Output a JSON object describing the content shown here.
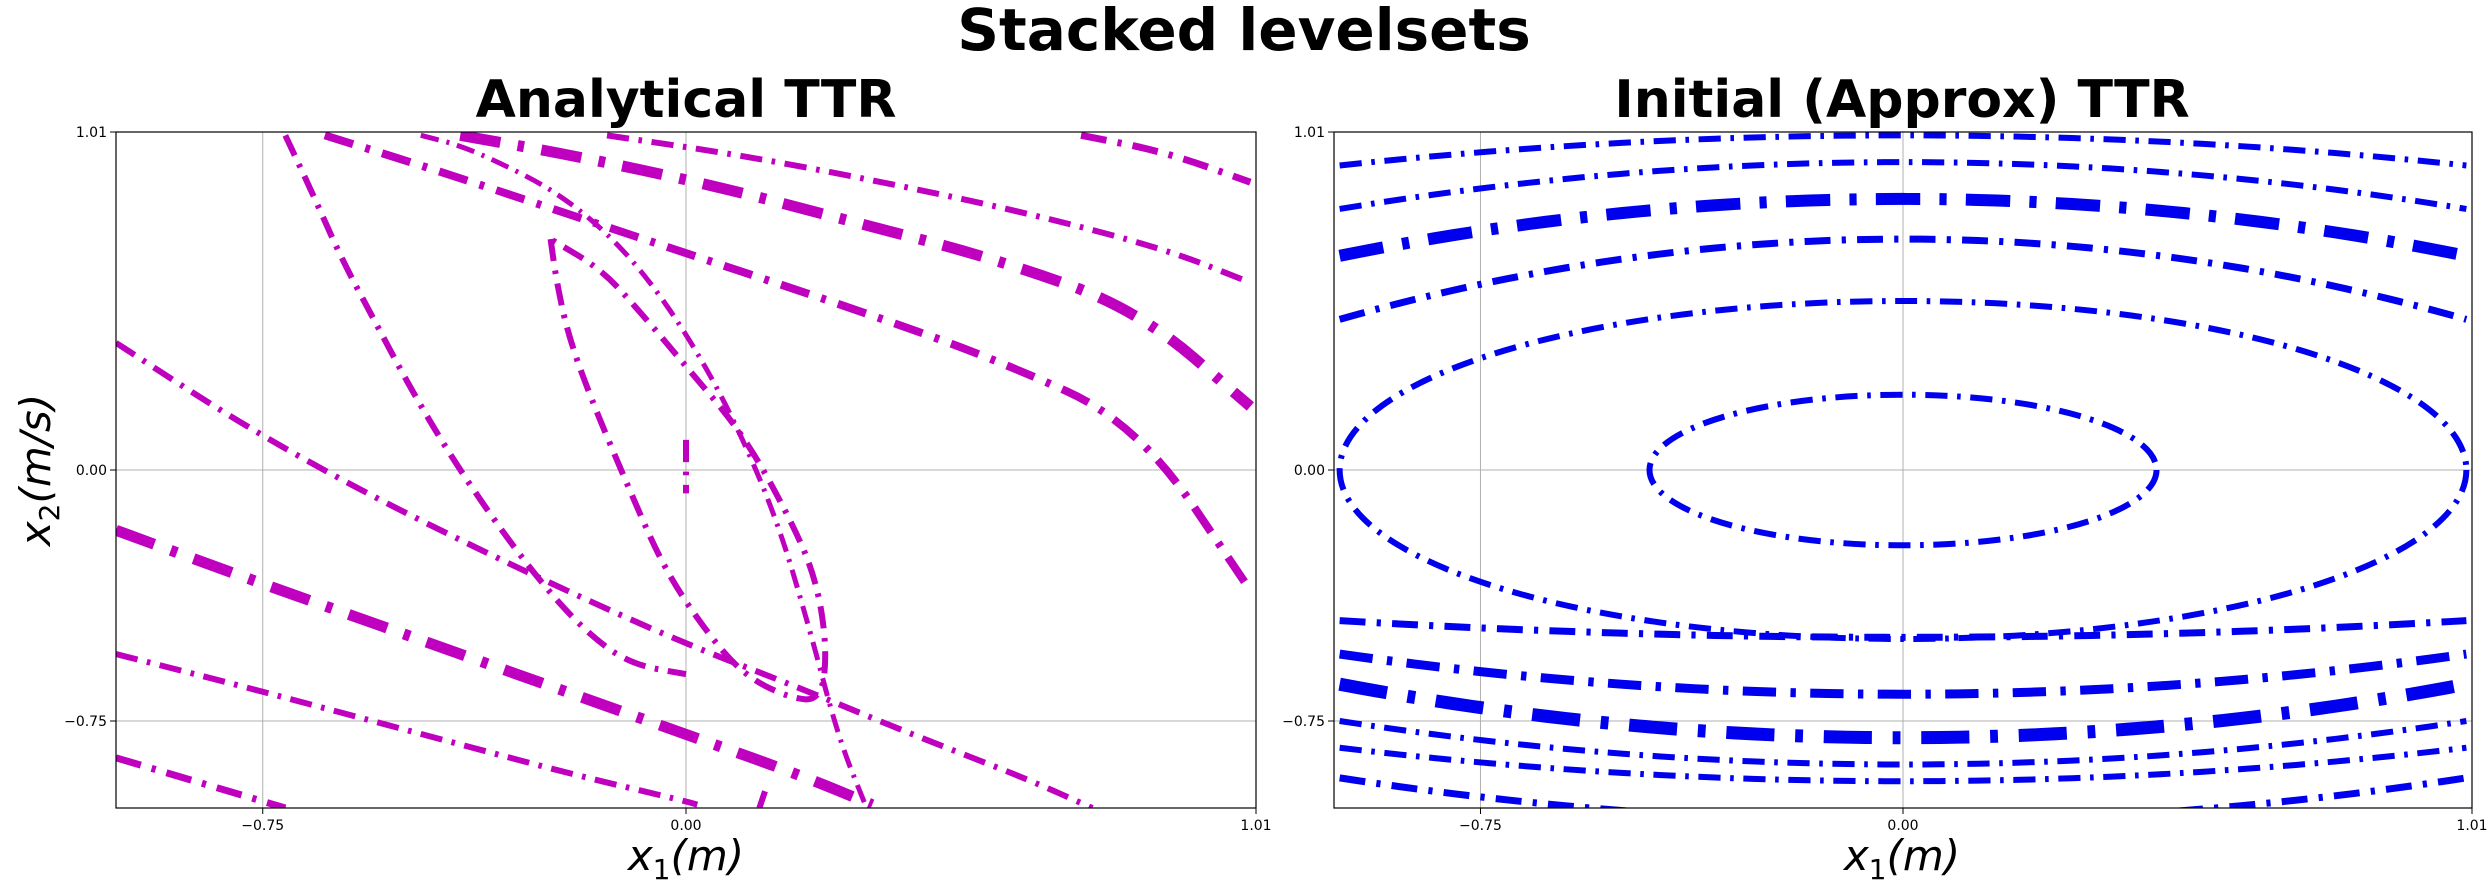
{
  "figure": {
    "suptitle": "Stacked levelsets"
  },
  "chart_data": [
    {
      "type": "line",
      "title": "Analytical TTR",
      "xlabel_main": "x",
      "xlabel_sub": "1",
      "xlabel_unit": "(m)",
      "ylabel_main": "x",
      "ylabel_sub": "2",
      "ylabel_unit": "(m/s)",
      "xlim": [
        -1.01,
        1.01
      ],
      "ylim": [
        -1.01,
        1.01
      ],
      "xticks": [
        -0.75,
        0.0,
        1.01
      ],
      "xtick_labels": [
        "−0.75",
        "0.00",
        "1.01"
      ],
      "yticks": [
        -0.75,
        0.0,
        1.01
      ],
      "ytick_labels": [
        "−0.75",
        "0.00",
        "1.01"
      ],
      "grid": true,
      "line_style": "dashdot",
      "color": "#bf00bf",
      "series": [
        {
          "width": 6,
          "points": [
            [
              -0.71,
              1.0
            ],
            [
              -0.66,
              0.82
            ],
            [
              -0.61,
              0.63
            ],
            [
              -0.55,
              0.44
            ],
            [
              -0.49,
              0.25
            ],
            [
              -0.42,
              0.05
            ],
            [
              -0.34,
              -0.15
            ],
            [
              -0.26,
              -0.33
            ],
            [
              -0.18,
              -0.48
            ],
            [
              -0.1,
              -0.58
            ],
            [
              0.0,
              -0.61
            ]
          ],
          "fade": false
        },
        {
          "width": 5,
          "points": [
            [
              -0.47,
              1.0
            ],
            [
              -0.4,
              0.97
            ],
            [
              -0.32,
              0.91
            ],
            [
              -0.24,
              0.84
            ],
            [
              -0.16,
              0.74
            ],
            [
              -0.08,
              0.6
            ],
            [
              0.0,
              0.41
            ],
            [
              0.08,
              0.17
            ],
            [
              0.16,
              -0.14
            ],
            [
              0.22,
              -0.48
            ],
            [
              0.27,
              -0.8
            ],
            [
              0.32,
              -1.01
            ]
          ]
        },
        {
          "width": 6,
          "points": [
            [
              -0.24,
              0.69
            ],
            [
              -0.23,
              0.57
            ],
            [
              -0.21,
              0.41
            ],
            [
              -0.17,
              0.22
            ],
            [
              -0.1,
              -0.06
            ],
            [
              -0.04,
              -0.29
            ],
            [
              0.03,
              -0.47
            ],
            [
              0.1,
              -0.61
            ],
            [
              0.18,
              -0.68
            ],
            [
              0.24,
              -0.69
            ],
            [
              0.25,
              -0.53
            ],
            [
              0.23,
              -0.32
            ],
            [
              0.18,
              -0.13
            ],
            [
              0.1,
              0.11
            ],
            [
              0.0,
              0.31
            ],
            [
              -0.08,
              0.47
            ],
            [
              -0.15,
              0.6
            ],
            [
              -0.24,
              0.69
            ]
          ]
        },
        {
          "width": 6,
          "points": [
            [
              0.0,
              0.09
            ],
            [
              0.0,
              -0.07
            ]
          ]
        },
        {
          "width": 8,
          "points": [
            [
              -0.64,
              1.0
            ],
            [
              -0.45,
              0.9
            ],
            [
              -0.2,
              0.76
            ],
            [
              0.05,
              0.62
            ],
            [
              0.3,
              0.48
            ],
            [
              0.55,
              0.33
            ],
            [
              0.8,
              0.14
            ],
            [
              1.0,
              -0.36
            ]
          ]
        },
        {
          "width": 11,
          "points": [
            [
              -0.4,
              1.0
            ],
            [
              -0.2,
              0.94
            ],
            [
              0.05,
              0.85
            ],
            [
              0.3,
              0.74
            ],
            [
              0.55,
              0.63
            ],
            [
              0.8,
              0.48
            ],
            [
              1.0,
              0.19
            ]
          ]
        },
        {
          "width": 6,
          "points": [
            [
              -0.14,
              1.0
            ],
            [
              0.1,
              0.94
            ],
            [
              0.35,
              0.86
            ],
            [
              0.6,
              0.77
            ],
            [
              0.85,
              0.66
            ],
            [
              1.0,
              0.56
            ]
          ]
        },
        {
          "width": 7,
          "points": [
            [
              0.7,
              1.0
            ],
            [
              0.85,
              0.95
            ],
            [
              1.0,
              0.86
            ]
          ]
        },
        {
          "width": 6,
          "points": [
            [
              -1.01,
              0.38
            ],
            [
              -0.8,
              0.15
            ],
            [
              -0.6,
              -0.04
            ],
            [
              -0.4,
              -0.21
            ],
            [
              -0.2,
              -0.37
            ],
            [
              0.0,
              -0.52
            ],
            [
              0.2,
              -0.65
            ],
            [
              0.4,
              -0.79
            ],
            [
              0.6,
              -0.92
            ],
            [
              0.72,
              -1.01
            ]
          ]
        },
        {
          "width": 11,
          "points": [
            [
              -1.01,
              -0.18
            ],
            [
              -0.8,
              -0.31
            ],
            [
              -0.6,
              -0.43
            ],
            [
              -0.4,
              -0.55
            ],
            [
              -0.2,
              -0.67
            ],
            [
              0.0,
              -0.79
            ],
            [
              0.2,
              -0.91
            ],
            [
              0.33,
              -1.0
            ]
          ]
        },
        {
          "width": 6,
          "points": [
            [
              -1.01,
              -0.55
            ],
            [
              -0.8,
              -0.64
            ],
            [
              -0.6,
              -0.73
            ],
            [
              -0.4,
              -0.82
            ],
            [
              -0.2,
              -0.91
            ],
            [
              0.0,
              -0.99
            ],
            [
              0.02,
              -1.0
            ]
          ]
        },
        {
          "width": 7,
          "points": [
            [
              -1.01,
              -0.86
            ],
            [
              -0.85,
              -0.94
            ],
            [
              -0.71,
              -1.01
            ]
          ]
        },
        {
          "width": 6,
          "points": [
            [
              0.14,
              -0.96
            ],
            [
              0.13,
              -1.01
            ]
          ]
        }
      ]
    },
    {
      "type": "line",
      "title": "Initial (Approx) TTR",
      "xlabel_main": "x",
      "xlabel_sub": "1",
      "xlabel_unit": "(m)",
      "xlim": [
        -1.01,
        1.01
      ],
      "ylim": [
        -1.01,
        1.01
      ],
      "xticks": [
        -0.75,
        0.0,
        1.01
      ],
      "xtick_labels": [
        "−0.75",
        "0.00",
        "1.01"
      ],
      "yticks": [
        -0.75,
        0.0,
        1.01
      ],
      "ytick_labels": [
        "−0.75",
        "0.00",
        "1.01"
      ],
      "grid": true,
      "line_style": "dashdot",
      "color": "#0000ee",
      "ellipses": [
        {
          "cx": 0,
          "cy": 0,
          "rx": 0.45,
          "ry": 0.225,
          "width": 6
        },
        {
          "cx": 0,
          "cy": 0,
          "rx": 1.0,
          "ry": 0.505,
          "width": 6
        }
      ],
      "arcs": [
        {
          "yc": 0.69,
          "yedge": 0.45,
          "width": 7,
          "sign": 1
        },
        {
          "yc": 0.81,
          "yedge": 0.64,
          "width": 12,
          "sign": 1
        },
        {
          "yc": 0.92,
          "yedge": 0.78,
          "width": 6,
          "sign": 1
        },
        {
          "yc": 1.0,
          "yedge": 0.91,
          "width": 6,
          "sign": 1
        },
        {
          "yc": -0.5,
          "yedge": -0.45,
          "width": 7,
          "sign": -1
        },
        {
          "yc": -0.67,
          "yedge": -0.55,
          "width": 9,
          "sign": -1
        },
        {
          "yc": -0.8,
          "yedge": -0.64,
          "width": 13,
          "sign": -1
        },
        {
          "yc": -0.88,
          "yedge": -0.75,
          "width": 6,
          "sign": -1
        },
        {
          "yc": -0.93,
          "yedge": -0.83,
          "width": 6,
          "sign": -1
        },
        {
          "yc": -1.05,
          "yedge": -0.92,
          "width": 7,
          "sign": -1
        }
      ]
    }
  ]
}
